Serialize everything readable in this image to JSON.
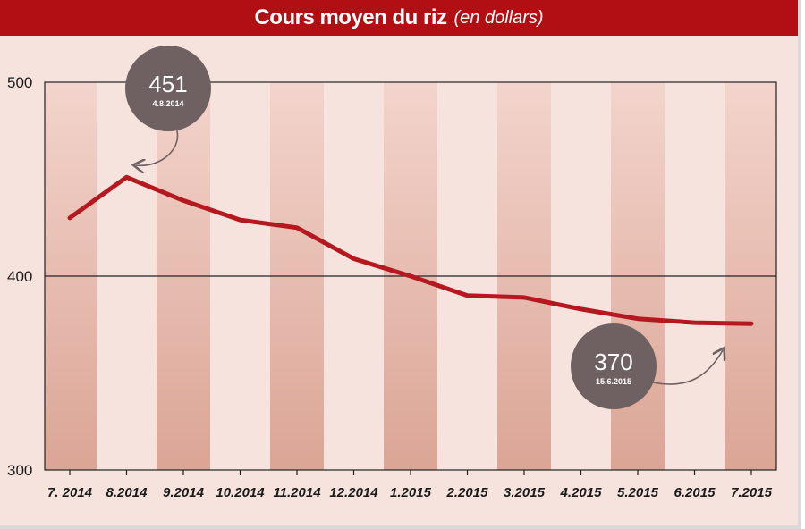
{
  "title": "Cours moyen du riz",
  "subtitle": "(en dollars)",
  "colors": {
    "header": "#b10f14",
    "line": "#b5191f",
    "bubble": "#6f6161",
    "background": "#f6e3dd",
    "stripe_light": "#f3d4cc",
    "stripe_dark": "#dba595"
  },
  "chart_data": {
    "type": "line",
    "categories": [
      "7. 2014",
      "8.2014",
      "9.2014",
      "10.2014",
      "11.2014",
      "12.2014",
      "1.2015",
      "2.2015",
      "3.2015",
      "4.2015",
      "5.2015",
      "6.2015",
      "7.2015"
    ],
    "x_positions": [
      0,
      1,
      2,
      3,
      4,
      5,
      6,
      7,
      8,
      9,
      10,
      11,
      12
    ],
    "series": [
      {
        "x": [
          0,
          1,
          2,
          3,
          4,
          5,
          6,
          7,
          8,
          9,
          10,
          11,
          12
        ],
        "values": [
          430,
          451,
          439,
          429,
          425,
          409,
          400,
          390,
          389,
          383,
          378,
          376,
          375.5
        ]
      }
    ],
    "ylim": [
      300,
      500
    ],
    "yticks": [
      300,
      400,
      500
    ],
    "grid": "horizontal line at 400",
    "annotations": [
      {
        "value": "451",
        "date": "4.8.2014",
        "x": 1,
        "y": 451
      },
      {
        "value": "370",
        "date": "15.6.2015",
        "x": 11.5,
        "y": 375
      }
    ]
  }
}
